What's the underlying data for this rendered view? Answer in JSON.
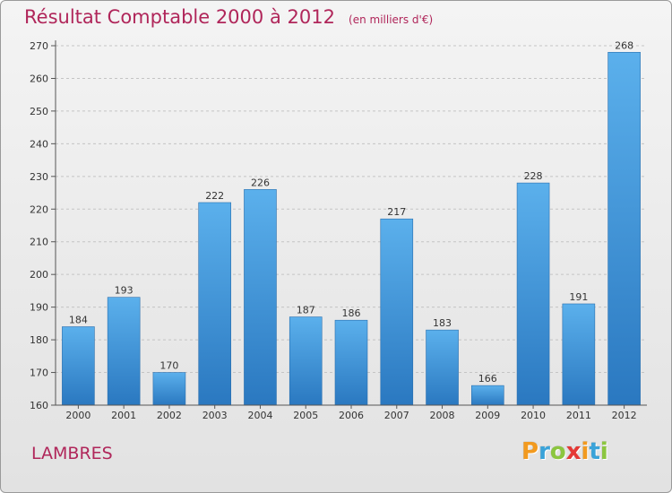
{
  "header": {
    "title": "Résultat Comptable 2000 à 2012",
    "subtitle": "(en milliers d'€)"
  },
  "commune": "LAMBRES",
  "logo": {
    "letters": [
      "P",
      "r",
      "o",
      "x",
      "i",
      "t",
      "i"
    ],
    "colors": [
      "#f29a1f",
      "#3aa3d9",
      "#8cc63f",
      "#e53935",
      "#f29a1f",
      "#3aa3d9",
      "#8cc63f"
    ]
  },
  "colors": {
    "bar": "#4aa0e0",
    "bar_dark": "#2a78c0",
    "title": "#b0265a"
  },
  "chart_data": {
    "type": "bar",
    "title": "Résultat Comptable 2000 à 2012",
    "subtitle": "(en milliers d'€)",
    "categories": [
      "2000",
      "2001",
      "2002",
      "2003",
      "2004",
      "2005",
      "2006",
      "2007",
      "2008",
      "2009",
      "2010",
      "2011",
      "2012"
    ],
    "values": [
      184,
      193,
      170,
      222,
      226,
      187,
      186,
      217,
      183,
      166,
      228,
      191,
      268
    ],
    "ylim": [
      160,
      270
    ],
    "yticks": [
      160,
      170,
      180,
      190,
      200,
      210,
      220,
      230,
      240,
      250,
      260,
      270
    ],
    "grid": true,
    "xlabel": "",
    "ylabel": ""
  }
}
